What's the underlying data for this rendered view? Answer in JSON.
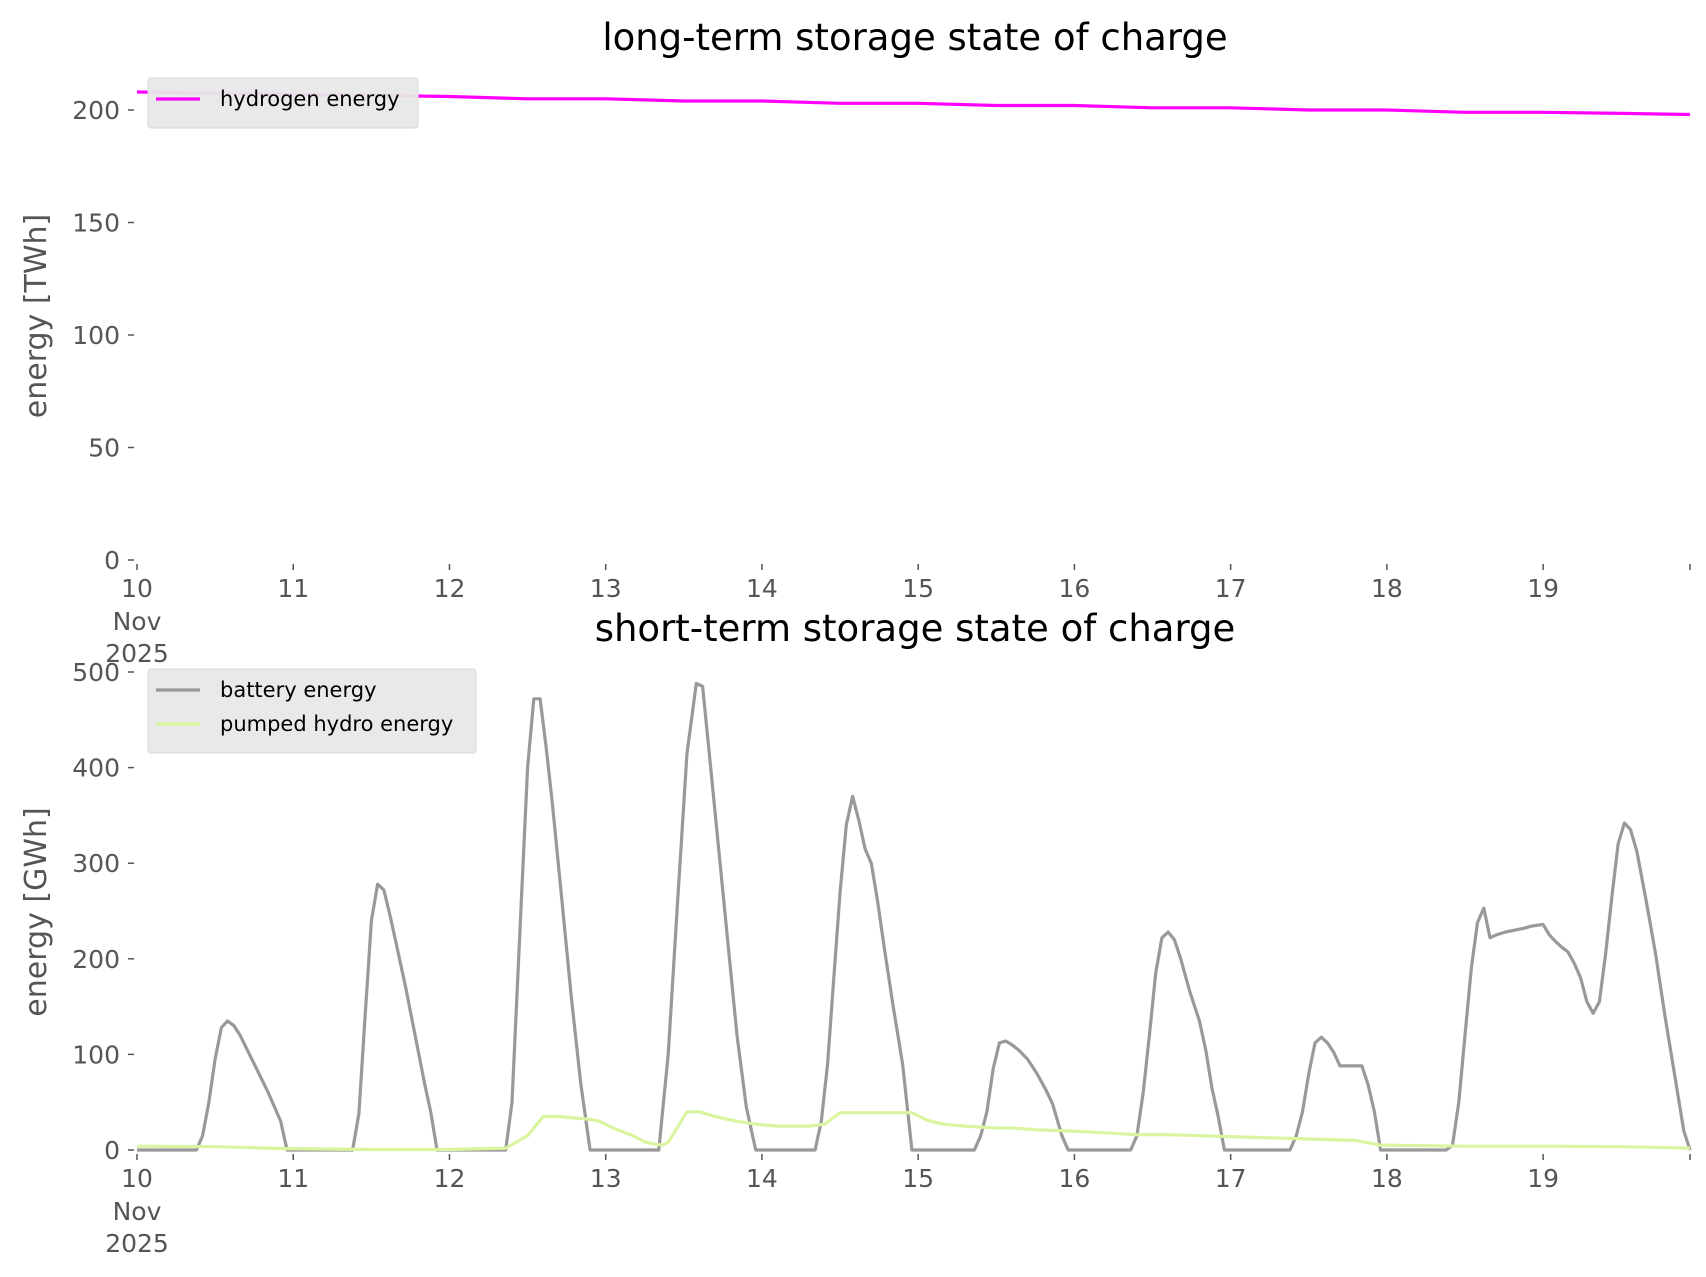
{
  "chart_data": [
    {
      "type": "line",
      "title": "long-term storage state of charge",
      "ylabel": "energy [TWh]",
      "xlabel": "",
      "ylim": [
        0,
        200
      ],
      "yticks": [
        "0",
        "50",
        "100",
        "150",
        "200"
      ],
      "xticks": [
        "10",
        "11",
        "12",
        "13",
        "14",
        "15",
        "16",
        "17",
        "18",
        "19"
      ],
      "xtick_sublabel": [
        "Nov",
        "2025"
      ],
      "xrange_days": [
        10,
        19.94
      ],
      "legend_position": "upper-left",
      "grid": false,
      "series": [
        {
          "name": "hydrogen energy",
          "color": "#ff00ff",
          "x": [
            10,
            10.5,
            11,
            11.5,
            12,
            12.5,
            13,
            13.5,
            14,
            14.5,
            15,
            15.5,
            16,
            16.5,
            17,
            17.5,
            18,
            18.5,
            19,
            19.5,
            19.94
          ],
          "y": [
            208,
            207.5,
            207,
            206.5,
            206,
            205,
            205,
            204,
            204,
            203,
            203,
            202,
            202,
            201,
            201,
            200,
            200,
            199,
            199,
            198.5,
            198
          ]
        }
      ]
    },
    {
      "type": "line",
      "title": "short-term storage state of charge",
      "ylabel": "energy [GWh]",
      "xlabel": "",
      "ylim": [
        0,
        500
      ],
      "yticks": [
        "0",
        "100",
        "200",
        "300",
        "400",
        "500"
      ],
      "xticks": [
        "10",
        "11",
        "12",
        "13",
        "14",
        "15",
        "16",
        "17",
        "18",
        "19"
      ],
      "xtick_sublabel": [
        "Nov",
        "2025"
      ],
      "xrange_days": [
        10,
        19.94
      ],
      "legend_position": "upper-left",
      "grid": false,
      "series": [
        {
          "name": "battery energy",
          "color": "#999999",
          "x": [
            10,
            10.38,
            10.42,
            10.46,
            10.5,
            10.54,
            10.58,
            10.62,
            10.66,
            10.72,
            10.78,
            10.84,
            10.88,
            10.92,
            10.96,
            11.38,
            11.42,
            11.46,
            11.5,
            11.54,
            11.58,
            11.62,
            11.66,
            11.72,
            11.78,
            11.84,
            11.88,
            11.92,
            11.96,
            12.36,
            12.4,
            12.46,
            12.5,
            12.54,
            12.58,
            12.62,
            12.66,
            12.72,
            12.78,
            12.84,
            12.9,
            12.96,
            13.34,
            13.4,
            13.46,
            13.52,
            13.58,
            13.62,
            13.66,
            13.72,
            13.78,
            13.84,
            13.9,
            13.96,
            14.34,
            14.38,
            14.42,
            14.46,
            14.5,
            14.54,
            14.58,
            14.62,
            14.66,
            14.7,
            14.74,
            14.78,
            14.84,
            14.9,
            14.96,
            15.36,
            15.4,
            15.44,
            15.48,
            15.52,
            15.56,
            15.6,
            15.64,
            15.7,
            15.76,
            15.82,
            15.86,
            15.92,
            15.96,
            16.36,
            16.4,
            16.44,
            16.48,
            16.52,
            16.56,
            16.6,
            16.64,
            16.68,
            16.74,
            16.8,
            16.84,
            16.88,
            16.92,
            16.96,
            17.38,
            17.42,
            17.46,
            17.5,
            17.54,
            17.58,
            17.62,
            17.66,
            17.7,
            17.74,
            17.8,
            17.84,
            17.88,
            17.92,
            17.96,
            18.38,
            18.42,
            18.46,
            18.5,
            18.54,
            18.58,
            18.62,
            18.66,
            18.7,
            18.76,
            18.82,
            18.88,
            18.92,
            18.96,
            19.0,
            19.04,
            19.08,
            19.12,
            19.16,
            19.2,
            19.24,
            19.28,
            19.32,
            19.36,
            19.4,
            19.44,
            19.48,
            19.52,
            19.56,
            19.6,
            19.66,
            19.72,
            19.78,
            19.84,
            19.9,
            19.94
          ],
          "y": [
            0,
            0,
            15,
            50,
            95,
            128,
            135,
            130,
            120,
            100,
            80,
            60,
            45,
            30,
            0,
            0,
            38,
            140,
            240,
            278,
            272,
            245,
            215,
            170,
            120,
            70,
            40,
            0,
            0,
            0,
            50,
            260,
            400,
            472,
            472,
            420,
            360,
            260,
            160,
            70,
            0,
            0,
            0,
            100,
            260,
            415,
            488,
            485,
            420,
            320,
            220,
            120,
            45,
            0,
            0,
            30,
            90,
            180,
            270,
            340,
            370,
            345,
            315,
            300,
            260,
            215,
            150,
            90,
            0,
            0,
            15,
            40,
            85,
            112,
            114,
            110,
            105,
            95,
            80,
            62,
            48,
            15,
            0,
            0,
            15,
            60,
            120,
            185,
            222,
            228,
            220,
            200,
            165,
            135,
            105,
            65,
            35,
            0,
            0,
            15,
            40,
            80,
            112,
            118,
            112,
            102,
            88,
            88,
            88,
            88,
            68,
            40,
            0,
            0,
            5,
            50,
            120,
            190,
            238,
            253,
            222,
            225,
            228,
            230,
            232,
            234,
            235,
            236,
            225,
            218,
            212,
            207,
            195,
            180,
            155,
            143,
            155,
            205,
            265,
            320,
            342,
            335,
            312,
            260,
            205,
            140,
            80,
            20,
            0
          ]
        },
        {
          "name": "pumped hydro energy",
          "color": "#d9f5a0",
          "x": [
            10,
            10.5,
            10.96,
            11.5,
            12,
            12.36,
            12.5,
            12.6,
            12.7,
            12.9,
            12.96,
            13.06,
            13.16,
            13.26,
            13.36,
            13.4,
            13.52,
            13.6,
            13.7,
            13.84,
            13.96,
            14.1,
            14.3,
            14.4,
            14.5,
            14.6,
            14.8,
            14.96,
            15.06,
            15.16,
            15.3,
            15.5,
            15.6,
            15.76,
            15.96,
            16.2,
            16.4,
            16.6,
            16.8,
            17.0,
            17.2,
            17.4,
            17.6,
            17.8,
            17.96,
            18.0,
            18.5,
            19.0,
            19.5,
            19.94
          ],
          "y": [
            4,
            3.5,
            1.5,
            0.5,
            0.5,
            2,
            15,
            35,
            35,
            32,
            30,
            22,
            16,
            8,
            5,
            8,
            40,
            40,
            35,
            30,
            27,
            25,
            25,
            27,
            39,
            39,
            39,
            39,
            31,
            27,
            25,
            23,
            23,
            21,
            20,
            18,
            16,
            16,
            15,
            14,
            13,
            12,
            11,
            10,
            5,
            5,
            4,
            4,
            3.5,
            2
          ]
        }
      ]
    }
  ]
}
